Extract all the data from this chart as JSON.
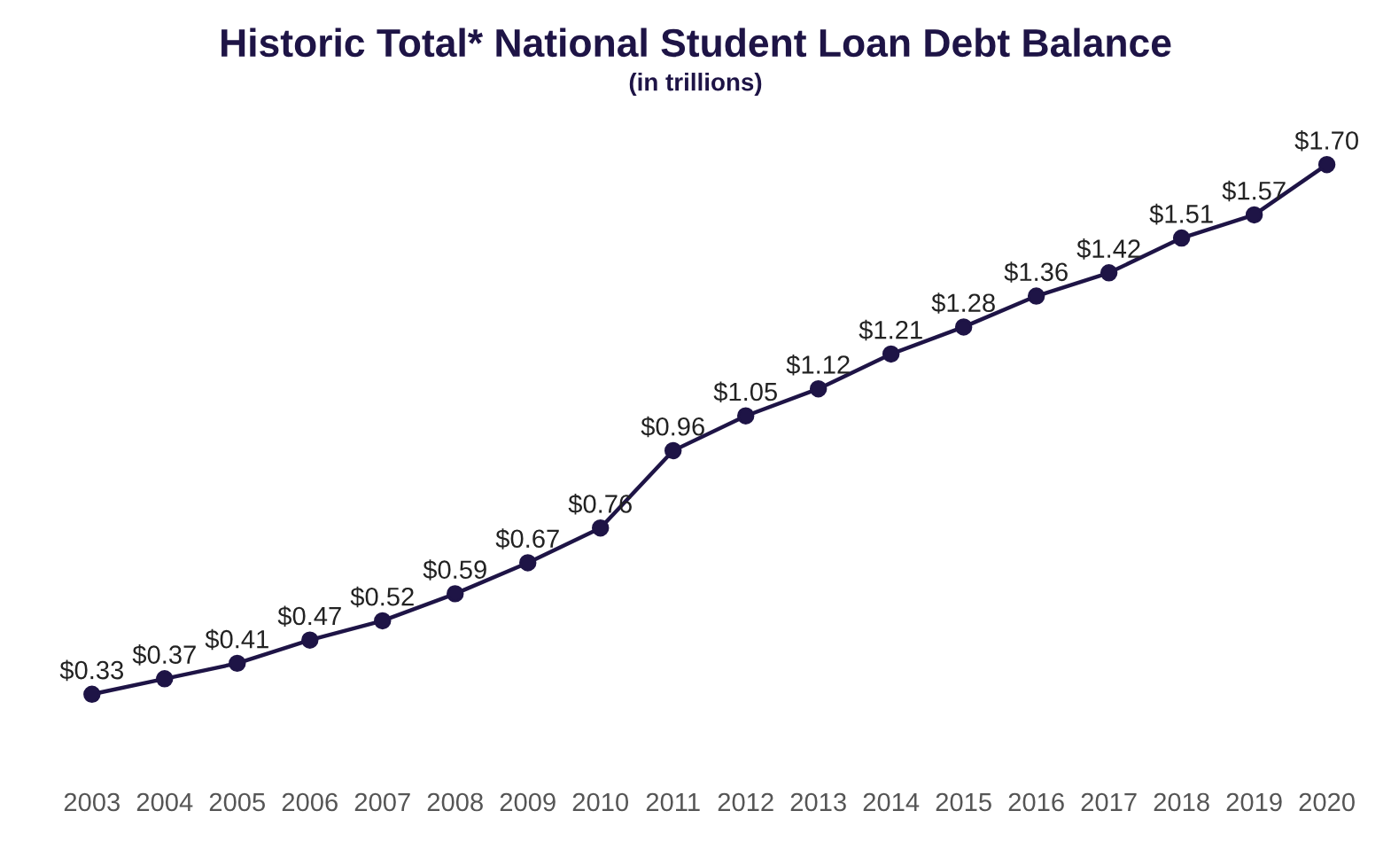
{
  "chart_data": {
    "type": "line",
    "title": "Historic Total* National Student Loan Debt Balance",
    "subtitle": "(in trillions)",
    "categories": [
      "2003",
      "2004",
      "2005",
      "2006",
      "2007",
      "2008",
      "2009",
      "2010",
      "2011",
      "2012",
      "2013",
      "2014",
      "2015",
      "2016",
      "2017",
      "2018",
      "2019",
      "2020"
    ],
    "series": [
      {
        "color": "#1e1446",
        "values": [
          0.33,
          0.37,
          0.41,
          0.47,
          0.52,
          0.59,
          0.67,
          0.76,
          0.96,
          1.05,
          1.12,
          1.21,
          1.28,
          1.36,
          1.42,
          1.51,
          1.57,
          1.7
        ],
        "value_labels": [
          "$0.33",
          "$0.37",
          "$0.41",
          "$0.47",
          "$0.52",
          "$0.59",
          "$0.67",
          "$0.76",
          "$0.96",
          "$1.05",
          "$1.12",
          "$1.21",
          "$1.28",
          "$1.36",
          "$1.42",
          "$1.51",
          "$1.57",
          "$1.70"
        ]
      }
    ],
    "marker": "circle",
    "line_style": "solid",
    "grid": false,
    "legend": false
  }
}
